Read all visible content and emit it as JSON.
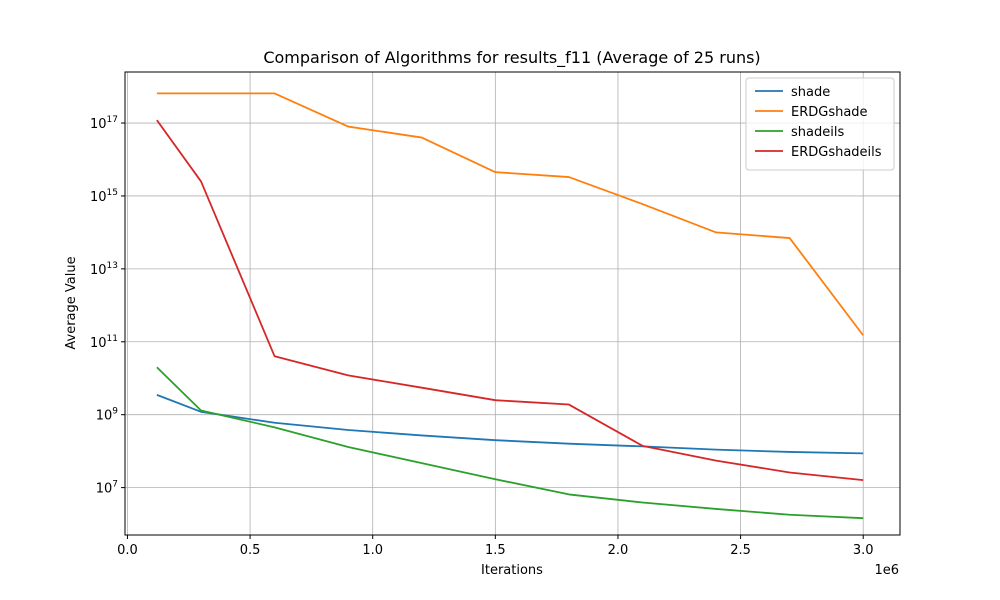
{
  "chart_data": {
    "type": "line",
    "title": "Comparison of Algorithms for results_f11 (Average of 25 runs)",
    "xlabel": "Iterations",
    "ylabel": "Average Value",
    "x_offset_label": "1e6",
    "x_scale": "linear",
    "y_scale": "log",
    "xlim": [
      -10000,
      3150000
    ],
    "ylim_log10": [
      5.7,
      18.4
    ],
    "grid": true,
    "legend_position": "top-right",
    "x_ticks": [
      0,
      500000,
      1000000,
      1500000,
      2000000,
      2500000,
      3000000
    ],
    "x_tick_labels": [
      "0.0",
      "0.5",
      "1.0",
      "1.5",
      "2.0",
      "2.5",
      "3.0"
    ],
    "y_ticks_exponent": [
      7,
      9,
      11,
      13,
      15,
      17
    ],
    "y_tick_labels": [
      {
        "base": "10",
        "exp": "7"
      },
      {
        "base": "10",
        "exp": "9"
      },
      {
        "base": "10",
        "exp": "11"
      },
      {
        "base": "10",
        "exp": "13"
      },
      {
        "base": "10",
        "exp": "15"
      },
      {
        "base": "10",
        "exp": "17"
      }
    ],
    "x": [
      120000,
      300000,
      600000,
      900000,
      1200000,
      1500000,
      1800000,
      2100000,
      2400000,
      2700000,
      3000000
    ],
    "series": [
      {
        "name": "shade",
        "color": "#1f77b4",
        "values": [
          3500000000.0,
          1200000000.0,
          600000000.0,
          380000000.0,
          270000000.0,
          200000000.0,
          160000000.0,
          135000000.0,
          110000000.0,
          95000000.0,
          87000000.0
        ]
      },
      {
        "name": "ERDGshade",
        "color": "#ff7f0e",
        "values": [
          6.5e+17,
          6.5e+17,
          6.5e+17,
          8e+16,
          4e+16,
          4500000000000000.0,
          3300000000000000.0,
          600000000000000.0,
          100000000000000.0,
          70000000000000.0,
          150000000000.0
        ]
      },
      {
        "name": "shadeils",
        "color": "#2ca02c",
        "values": [
          20000000000.0,
          1300000000.0,
          450000000.0,
          130000000.0,
          47000000.0,
          17000000.0,
          6500000.0,
          3900000.0,
          2600000.0,
          1800000.0,
          1450000.0
        ]
      },
      {
        "name": "ERDGshadeils",
        "color": "#d62728",
        "values": [
          1.2e+17,
          2500000000000000.0,
          40000000000.0,
          12000000000.0,
          5500000000.0,
          2500000000.0,
          1900000000.0,
          140000000.0,
          55000000.0,
          26000000.0,
          16000000.0
        ]
      }
    ]
  }
}
